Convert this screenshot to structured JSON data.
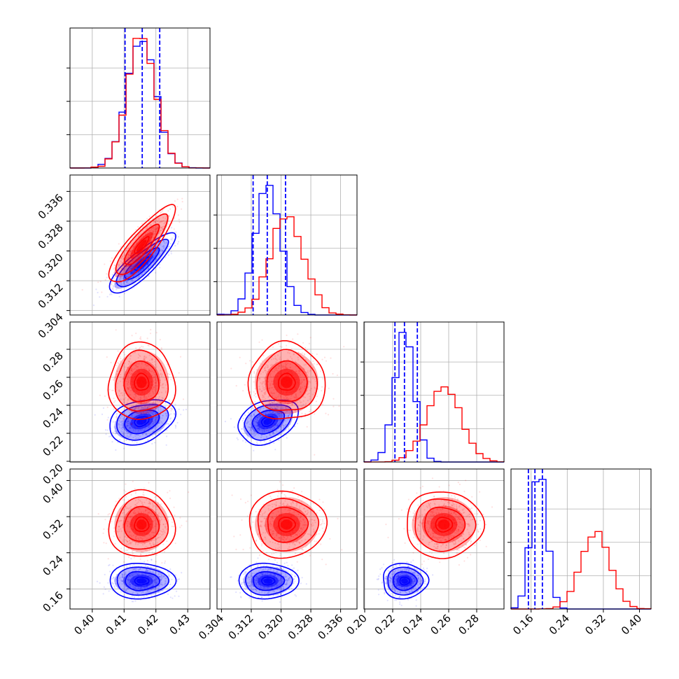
{
  "chart_data": {
    "type": "corner",
    "grid": true,
    "colors": {
      "series_a": "#0000ff",
      "series_b": "#ff0000"
    },
    "parameters": [
      {
        "range": [
          0.393,
          0.437
        ],
        "ticks": [
          0.4,
          0.41,
          0.42,
          0.43
        ],
        "tick_labels": [
          "0.40",
          "0.41",
          "0.42",
          "0.43"
        ]
      },
      {
        "range": [
          0.3028,
          0.3404
        ],
        "ticks": [
          0.304,
          0.312,
          0.32,
          0.328,
          0.336
        ],
        "tick_labels": [
          "0.304",
          "0.312",
          "0.320",
          "0.328",
          "0.336"
        ]
      },
      {
        "range": [
          0.1995,
          0.2995
        ],
        "ticks": [
          0.2,
          0.22,
          0.24,
          0.26,
          0.28
        ],
        "tick_labels": [
          "0.20",
          "0.22",
          "0.24",
          "0.26",
          "0.28"
        ]
      },
      {
        "range": [
          0.1155,
          0.4255
        ],
        "ticks": [
          0.16,
          0.24,
          0.32,
          0.4
        ],
        "tick_labels": [
          "0.16",
          "0.24",
          "0.32",
          "0.40"
        ]
      }
    ],
    "series": [
      {
        "color": "#0000ff",
        "mean": [
          0.4155,
          0.3165,
          0.2285,
          0.1775
        ],
        "sd": [
          0.0045,
          0.0035,
          0.007,
          0.017
        ],
        "corr": {
          "0-1": 0.85,
          "0-2": 0.3,
          "1-2": 0.3,
          "0-3": 0,
          "1-3": 0,
          "2-3": 0
        },
        "quantiles": [
          [
            0.4103,
            0.4157,
            0.4212
          ],
          [
            0.3125,
            0.3163,
            0.3212
          ],
          [
            0.2216,
            0.2284,
            0.2376
          ],
          [
            0.154,
            0.1685,
            0.185
          ]
        ]
      },
      {
        "color": "#ff0000",
        "mean": [
          0.4155,
          0.3215,
          0.2565,
          0.3025
        ],
        "sd": [
          0.0045,
          0.0045,
          0.012,
          0.032
        ],
        "corr": {
          "0-1": 0.85,
          "0-2": 0,
          "1-2": 0,
          "0-3": 0,
          "1-3": 0,
          "2-3": 0
        }
      }
    ]
  }
}
